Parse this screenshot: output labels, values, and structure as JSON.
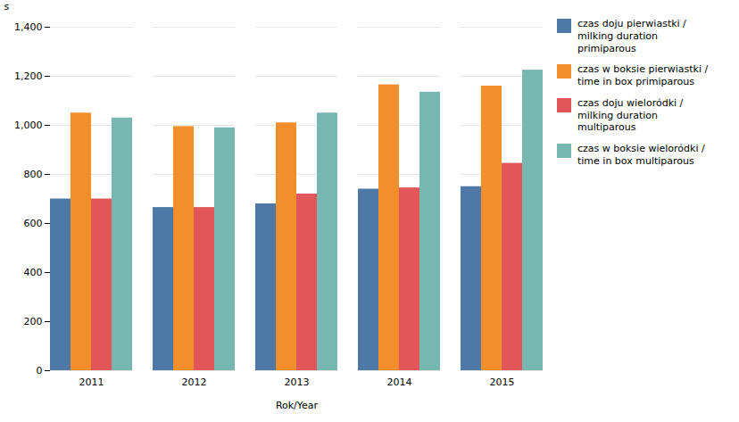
{
  "chart_data": {
    "type": "bar",
    "xlabel": "Rok/Year",
    "ylabel": "s",
    "categories": [
      "2011",
      "2012",
      "2013",
      "2014",
      "2015"
    ],
    "series": [
      {
        "name": "czas doju pierwiastki /\nmilking duration\nprimiparous",
        "values": [
          700,
          665,
          680,
          740,
          750
        ]
      },
      {
        "name": "czas w boksie pierwiastki /\ntime in box primiparous",
        "values": [
          1050,
          995,
          1010,
          1165,
          1160
        ]
      },
      {
        "name": "czas doju wieloródki /\nmilking duration\nmultiparous",
        "values": [
          700,
          665,
          720,
          745,
          845
        ]
      },
      {
        "name": "czas w boksie wieloródki /\ntime in box multiparous",
        "values": [
          1030,
          990,
          1050,
          1135,
          1225
        ]
      }
    ],
    "ylim": [
      0,
      1400
    ],
    "yticks": [
      0,
      200,
      400,
      600,
      800,
      1000,
      1200,
      1400
    ],
    "grid": true,
    "legend": "right"
  }
}
